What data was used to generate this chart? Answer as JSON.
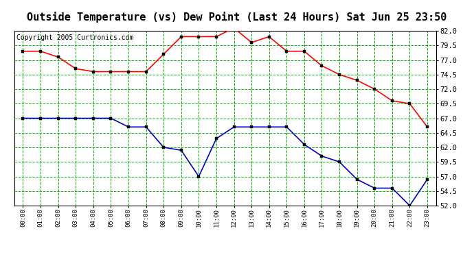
{
  "title": "Outside Temperature (vs) Dew Point (Last 24 Hours) Sat Jun 25 23:50",
  "copyright": "Copyright 2005 Curtronics.com",
  "hours": [
    "00:00",
    "01:00",
    "02:00",
    "03:00",
    "04:00",
    "05:00",
    "06:00",
    "07:00",
    "08:00",
    "09:00",
    "10:00",
    "11:00",
    "12:00",
    "13:00",
    "14:00",
    "15:00",
    "16:00",
    "17:00",
    "18:00",
    "19:00",
    "20:00",
    "21:00",
    "22:00",
    "23:00"
  ],
  "temp": [
    78.5,
    78.5,
    77.5,
    75.5,
    75.0,
    75.0,
    75.0,
    75.0,
    78.0,
    81.0,
    81.0,
    81.0,
    82.5,
    80.0,
    81.0,
    78.5,
    78.5,
    76.0,
    74.5,
    73.5,
    72.0,
    70.0,
    69.5,
    65.5
  ],
  "dew": [
    67.0,
    67.0,
    67.0,
    67.0,
    67.0,
    67.0,
    65.5,
    65.5,
    62.0,
    61.5,
    57.0,
    63.5,
    65.5,
    65.5,
    65.5,
    65.5,
    62.5,
    60.5,
    59.5,
    56.5,
    55.0,
    55.0,
    52.0,
    56.5
  ],
  "temp_color": "#ff0000",
  "dew_color": "#0000cc",
  "bg_color": "#ffffff",
  "plot_bg": "#ffffff",
  "grid_color": "#00bb00",
  "ylim": [
    52.0,
    82.0
  ],
  "yticks": [
    52.0,
    54.5,
    57.0,
    59.5,
    62.0,
    64.5,
    67.0,
    69.5,
    72.0,
    74.5,
    77.0,
    79.5,
    82.0
  ],
  "title_fontsize": 11,
  "copyright_fontsize": 7,
  "marker": "s",
  "marker_size": 3,
  "linewidth": 1.2
}
